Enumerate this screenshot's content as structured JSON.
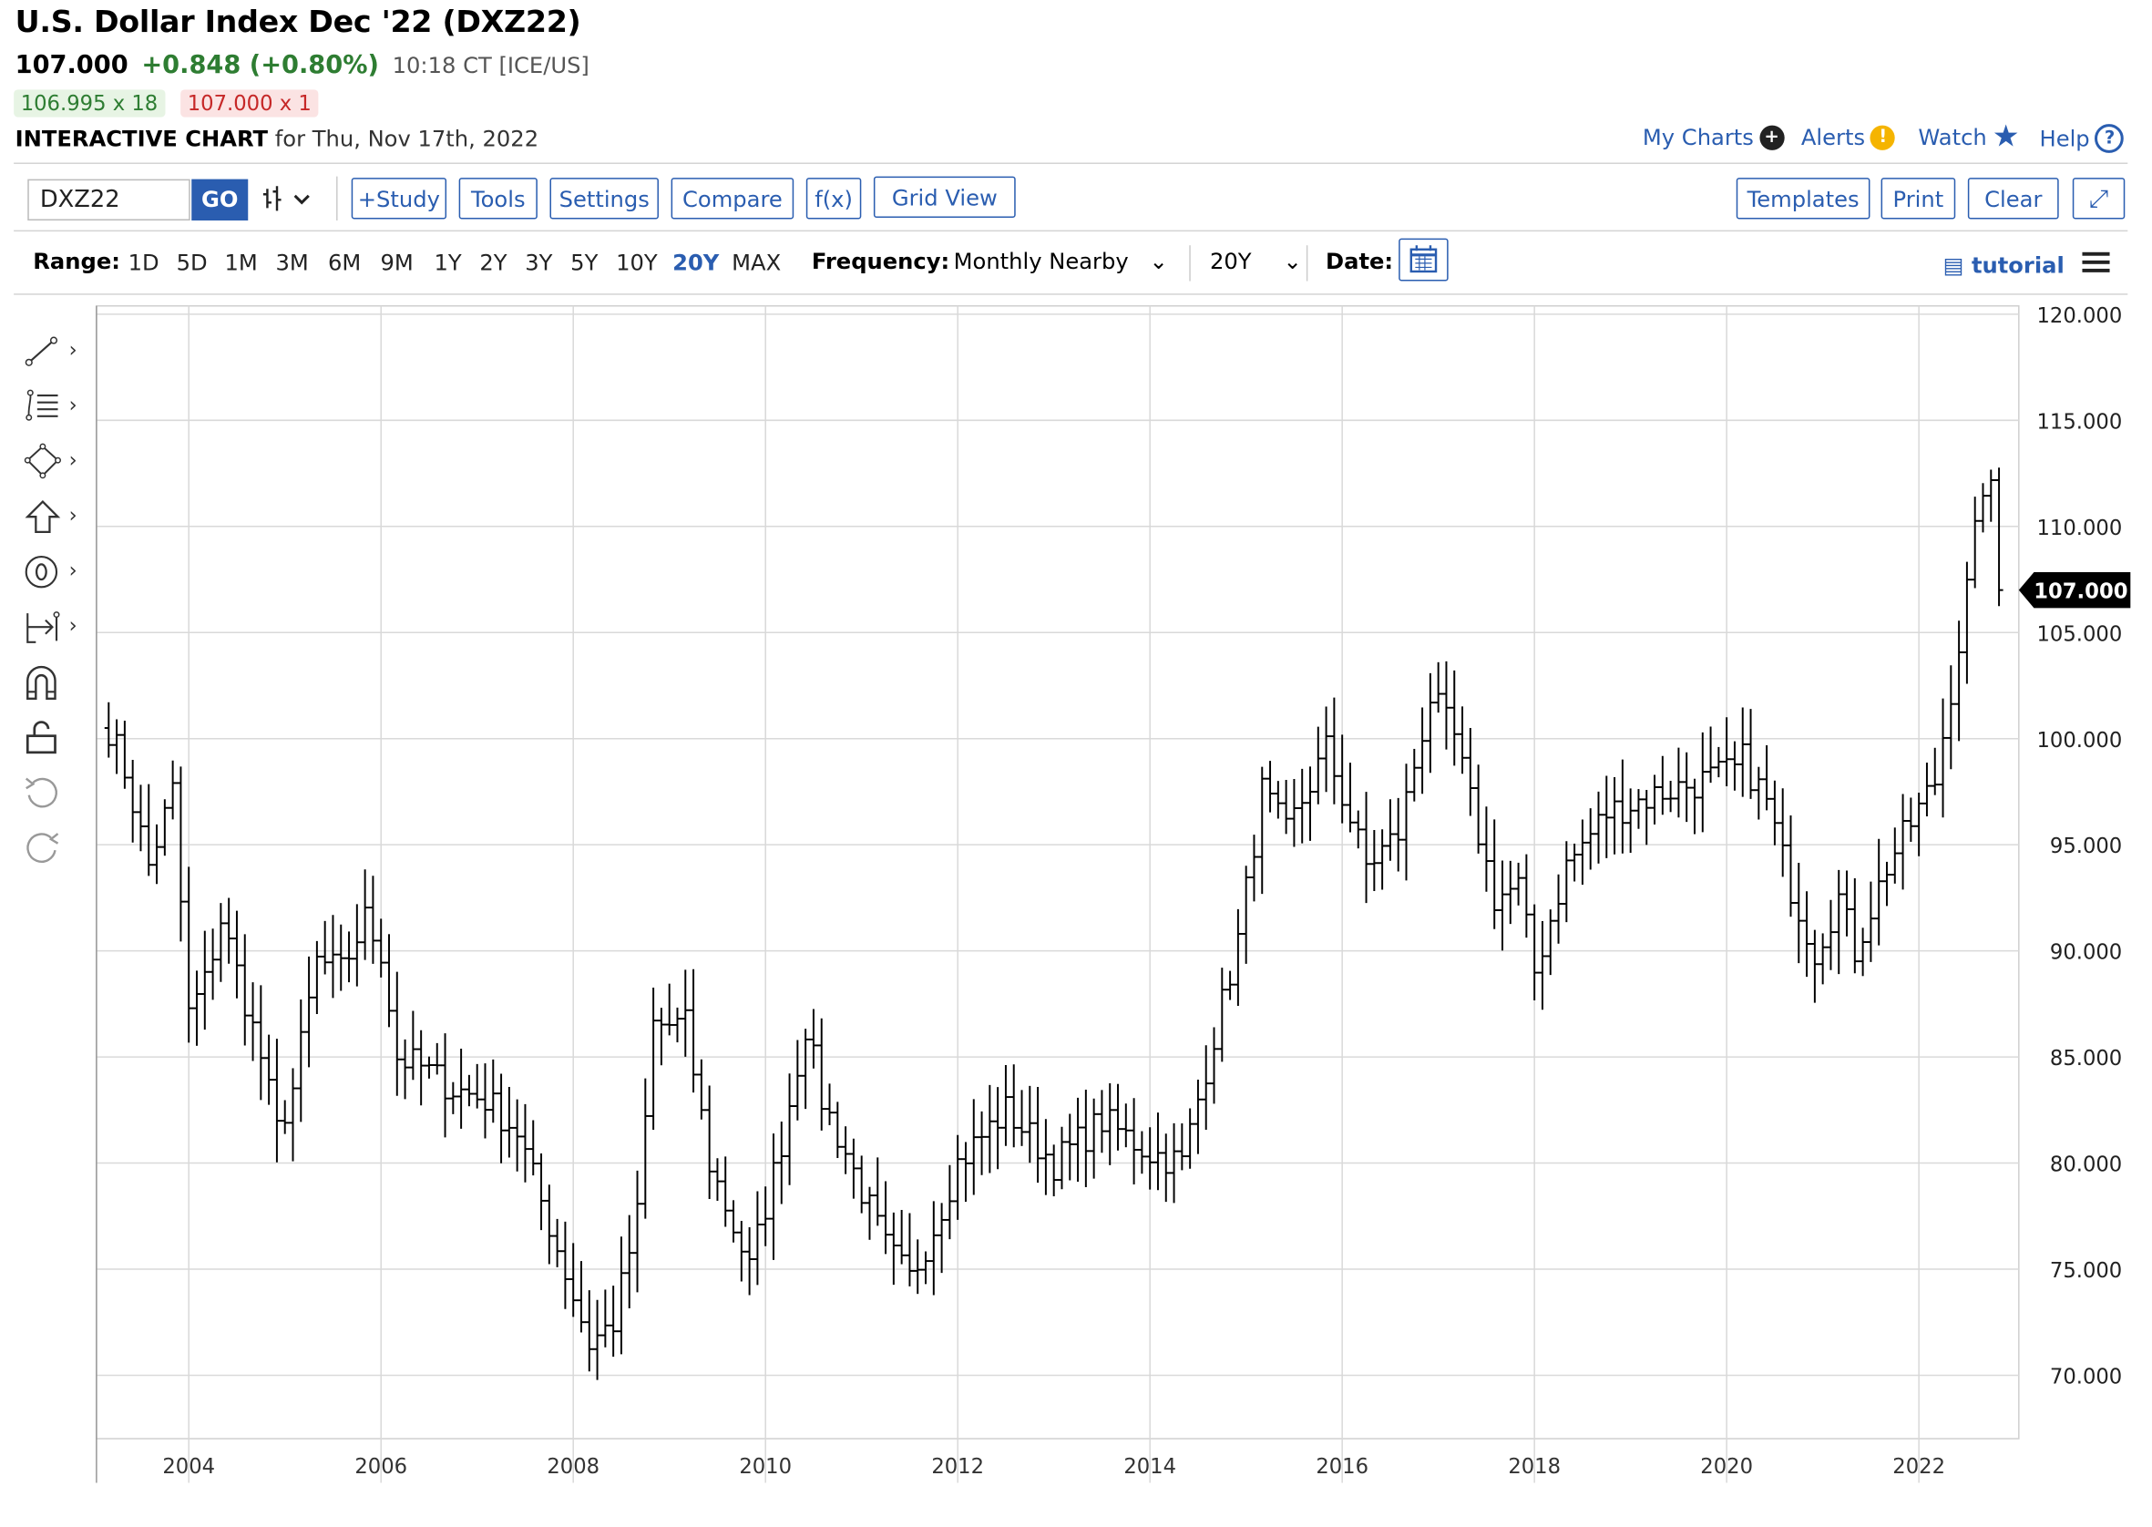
{
  "header": {
    "title": "U.S. Dollar Index Dec '22 (DXZ22)",
    "last": "107.000",
    "change": "+0.848 (+0.80%)",
    "time_exchange": "10:18 CT [ICE/US]",
    "bid": "106.995 x 18",
    "ask": "107.000 x 1",
    "chart_label": "INTERACTIVE CHART",
    "chart_date": "for Thu, Nov 17th, 2022"
  },
  "top_links": {
    "my_charts": "My Charts",
    "alerts": "Alerts",
    "watch": "Watch",
    "help": "Help"
  },
  "toolbar": {
    "symbol_value": "DXZ22",
    "go": "GO",
    "study": "+Study",
    "tools": "Tools",
    "settings": "Settings",
    "compare": "Compare",
    "fx": "f(x)",
    "grid_view": "Grid View",
    "templates": "Templates",
    "print": "Print",
    "clear": "Clear"
  },
  "range_bar": {
    "range_label": "Range:",
    "ranges": [
      "1D",
      "5D",
      "1M",
      "3M",
      "6M",
      "9M",
      "1Y",
      "2Y",
      "3Y",
      "5Y",
      "10Y",
      "20Y",
      "MAX"
    ],
    "active_range": "20Y",
    "frequency_label": "Frequency:",
    "frequency_value": "Monthly Nearby",
    "period_value": "20Y",
    "date_label": "Date:",
    "tutorial": "tutorial"
  },
  "left_tools": [
    "line-tool-icon",
    "fib-tool-icon",
    "shape-tool-icon",
    "arrow-tool-icon",
    "label-tool-icon",
    "measure-tool-icon",
    "magnet-icon",
    "lock-icon",
    "undo-icon",
    "redo-icon"
  ],
  "colors": {
    "accent": "#2a5db0",
    "up": "#2e7d32",
    "down": "#c62828",
    "bars": "#000000",
    "grid": "#d9d9d9"
  },
  "chart_data": {
    "type": "ohlc",
    "title": "U.S. Dollar Index Dec '22 (DXZ22)",
    "frequency": "Monthly Nearby",
    "ylim": [
      67.0,
      120.5
    ],
    "y_ticks": [
      "70.000",
      "75.000",
      "80.000",
      "85.000",
      "90.000",
      "95.000",
      "100.000",
      "105.000",
      "110.000",
      "115.000",
      "120.000"
    ],
    "x_ticks": [
      "2004",
      "2006",
      "2008",
      "2010",
      "2012",
      "2014",
      "2016",
      "2018",
      "2020",
      "2022"
    ],
    "last_price_label": "107.000",
    "grid": true,
    "anchors": [
      {
        "date": "2003-03",
        "close": 100.5
      },
      {
        "date": "2003-05",
        "close": 98.5
      },
      {
        "date": "2003-08",
        "close": 94.0
      },
      {
        "date": "2003-11",
        "close": 97.5
      },
      {
        "date": "2004-01",
        "close": 87.0
      },
      {
        "date": "2004-03",
        "close": 88.5
      },
      {
        "date": "2004-05",
        "close": 91.5
      },
      {
        "date": "2004-07",
        "close": 89.0
      },
      {
        "date": "2004-10",
        "close": 85.0
      },
      {
        "date": "2004-12",
        "close": 81.5
      },
      {
        "date": "2005-02",
        "close": 83.5
      },
      {
        "date": "2005-05",
        "close": 89.5
      },
      {
        "date": "2005-08",
        "close": 89.0
      },
      {
        "date": "2005-11",
        "close": 91.5
      },
      {
        "date": "2006-01",
        "close": 90.0
      },
      {
        "date": "2006-03",
        "close": 85.0
      },
      {
        "date": "2006-06",
        "close": 84.5
      },
      {
        "date": "2006-10",
        "close": 83.5
      },
      {
        "date": "2007-02",
        "close": 83.0
      },
      {
        "date": "2007-06",
        "close": 81.5
      },
      {
        "date": "2007-11",
        "close": 76.0
      },
      {
        "date": "2008-03",
        "close": 71.5
      },
      {
        "date": "2008-06",
        "close": 72.5
      },
      {
        "date": "2008-09",
        "close": 77.5
      },
      {
        "date": "2008-11",
        "close": 86.5
      },
      {
        "date": "2009-03",
        "close": 86.5
      },
      {
        "date": "2009-06",
        "close": 80.0
      },
      {
        "date": "2009-11",
        "close": 75.0
      },
      {
        "date": "2010-03",
        "close": 81.0
      },
      {
        "date": "2010-06",
        "close": 86.5
      },
      {
        "date": "2010-08",
        "close": 83.0
      },
      {
        "date": "2010-11",
        "close": 80.5
      },
      {
        "date": "2011-04",
        "close": 76.0
      },
      {
        "date": "2011-07",
        "close": 74.5
      },
      {
        "date": "2011-10",
        "close": 77.0
      },
      {
        "date": "2012-01",
        "close": 80.0
      },
      {
        "date": "2012-07",
        "close": 82.5
      },
      {
        "date": "2013-01",
        "close": 80.0
      },
      {
        "date": "2013-07",
        "close": 82.0
      },
      {
        "date": "2014-01",
        "close": 80.5
      },
      {
        "date": "2014-05",
        "close": 80.0
      },
      {
        "date": "2014-09",
        "close": 86.0
      },
      {
        "date": "2014-12",
        "close": 90.5
      },
      {
        "date": "2015-03",
        "close": 97.5
      },
      {
        "date": "2015-06",
        "close": 95.5
      },
      {
        "date": "2015-11",
        "close": 99.5
      },
      {
        "date": "2016-04",
        "close": 94.0
      },
      {
        "date": "2016-08",
        "close": 95.5
      },
      {
        "date": "2016-12",
        "close": 102.0
      },
      {
        "date": "2017-03",
        "close": 100.0
      },
      {
        "date": "2017-08",
        "close": 92.5
      },
      {
        "date": "2017-11",
        "close": 93.0
      },
      {
        "date": "2018-01",
        "close": 89.0
      },
      {
        "date": "2018-05",
        "close": 94.0
      },
      {
        "date": "2018-10",
        "close": 96.5
      },
      {
        "date": "2019-05",
        "close": 97.5
      },
      {
        "date": "2019-10",
        "close": 98.0
      },
      {
        "date": "2020-02",
        "close": 98.5
      },
      {
        "date": "2020-03",
        "close": 99.0
      },
      {
        "date": "2020-06",
        "close": 97.0
      },
      {
        "date": "2020-09",
        "close": 93.0
      },
      {
        "date": "2020-12",
        "close": 90.0
      },
      {
        "date": "2021-03",
        "close": 92.5
      },
      {
        "date": "2021-05",
        "close": 90.0
      },
      {
        "date": "2021-09",
        "close": 94.0
      },
      {
        "date": "2021-12",
        "close": 96.0
      },
      {
        "date": "2022-03",
        "close": 98.0
      },
      {
        "date": "2022-06",
        "close": 104.5
      },
      {
        "date": "2022-09",
        "close": 112.0
      },
      {
        "date": "2022-10",
        "close": 111.5
      },
      {
        "date": "2022-11",
        "close": 107.0
      }
    ]
  }
}
